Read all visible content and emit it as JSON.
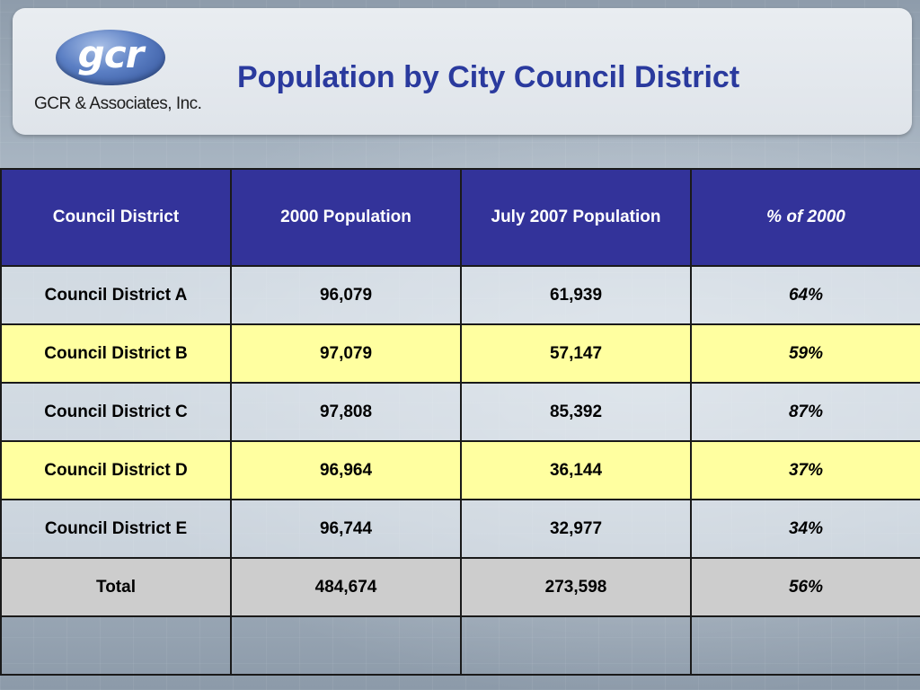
{
  "header": {
    "logo_mark": "gcr",
    "logo_caption": "GCR & Associates, Inc.",
    "title": "Population by City Council District"
  },
  "table": {
    "columns": [
      "Council District",
      "2000 Population",
      "July 2007 Population",
      "% of 2000"
    ],
    "rows": [
      {
        "district": "Council District A",
        "pop2000": "96,079",
        "pop2007": "61,939",
        "pct": "64%"
      },
      {
        "district": "Council District B",
        "pop2000": "97,079",
        "pop2007": "57,147",
        "pct": "59%"
      },
      {
        "district": "Council District C",
        "pop2000": "97,808",
        "pop2007": "85,392",
        "pct": "87%"
      },
      {
        "district": "Council District D",
        "pop2000": "96,964",
        "pop2007": "36,144",
        "pct": "37%"
      },
      {
        "district": "Council District E",
        "pop2000": "96,744",
        "pop2007": "32,977",
        "pct": "34%"
      }
    ],
    "total": {
      "district": "Total",
      "pop2000": "484,674",
      "pop2007": "273,598",
      "pct": "56%"
    }
  },
  "colors": {
    "header_fill": "#33339a",
    "title_text": "#2a3a9e",
    "yellow_row": "#ffffa0",
    "total_row": "#cdcdcd"
  }
}
